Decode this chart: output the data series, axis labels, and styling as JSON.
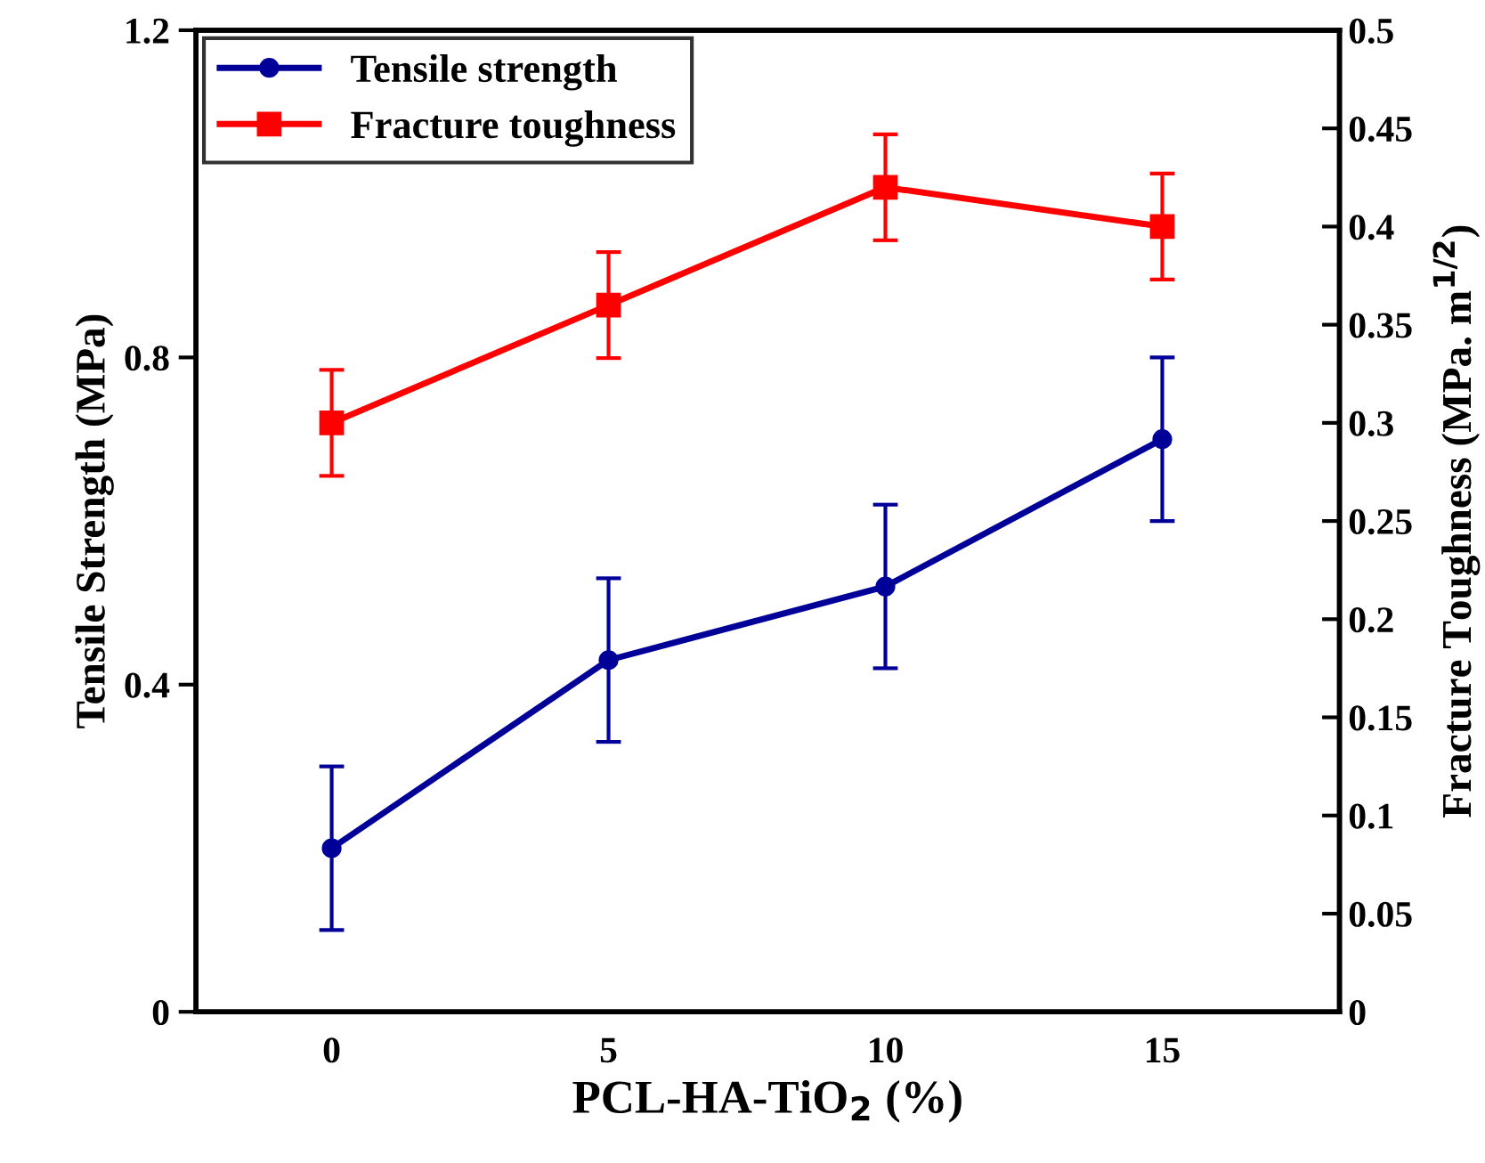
{
  "chart_data": {
    "type": "line",
    "xlabel": "PCL-HA-TiO$_{2}$ (%)",
    "ylabel": "Tensile Strength (MPa)",
    "y2label": "Fracture Toughness (MPa. m$^{1/2}$)",
    "categories": [
      "0",
      "5",
      "10",
      "15"
    ],
    "series": [
      {
        "name": "Tensile strength",
        "color": "#000099",
        "marker": "circle",
        "values": [
          0.2,
          0.43,
          0.52,
          0.7
        ],
        "errors": [
          0.1,
          0.1,
          0.1,
          0.1
        ]
      },
      {
        "name": "Fracture toughness",
        "color": "#ff0000",
        "marker": "square",
        "axis": "y2",
        "values": [
          0.3,
          0.36,
          0.42,
          0.4
        ],
        "errors": [
          0.027,
          0.027,
          0.027,
          0.027
        ]
      }
    ],
    "ylim": [
      0,
      1.2
    ],
    "yticks": [
      0,
      0.4,
      0.8,
      1.2
    ],
    "y2lim": [
      0,
      0.5
    ],
    "y2ticks": [
      0,
      0.05,
      0.1,
      0.15,
      0.2,
      0.25,
      0.3,
      0.35,
      0.4,
      0.45,
      0.5
    ],
    "grid": false,
    "legend": "top left",
    "line_style": "solid"
  }
}
